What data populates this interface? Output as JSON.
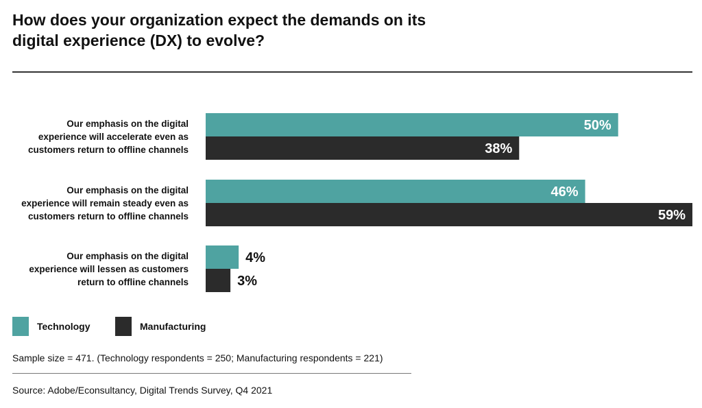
{
  "title": "How does your organization expect the demands on its digital experience (DX) to evolve?",
  "colors": {
    "technology": "#4fa3a1",
    "manufacturing": "#2b2b2b"
  },
  "chart_data": {
    "type": "bar",
    "orientation": "horizontal",
    "categories": [
      [
        "Our emphasis on the digital",
        "experience will accelerate even as",
        "customers return to offline channels"
      ],
      [
        "Our emphasis on the digital",
        "experience will remain steady even as",
        "customers return to offline channels"
      ],
      [
        "Our emphasis on the digital",
        "experience will lessen as customers",
        "return to offline channels"
      ]
    ],
    "series": [
      {
        "name": "Technology",
        "values": [
          50,
          46,
          4
        ],
        "labels": [
          "50%",
          "46%",
          "4%"
        ]
      },
      {
        "name": "Manufacturing",
        "values": [
          38,
          59,
          3
        ],
        "labels": [
          "38%",
          "59%",
          "3%"
        ]
      }
    ],
    "xlim": [
      0,
      59
    ],
    "unit": "%",
    "legend": [
      "Technology",
      "Manufacturing"
    ]
  },
  "notes": {
    "sample": "Sample size = 471. (Technology respondents = 250; Manufacturing respondents = 221)",
    "source": "Source: Adobe/Econsultancy, Digital Trends Survey, Q4 2021"
  }
}
